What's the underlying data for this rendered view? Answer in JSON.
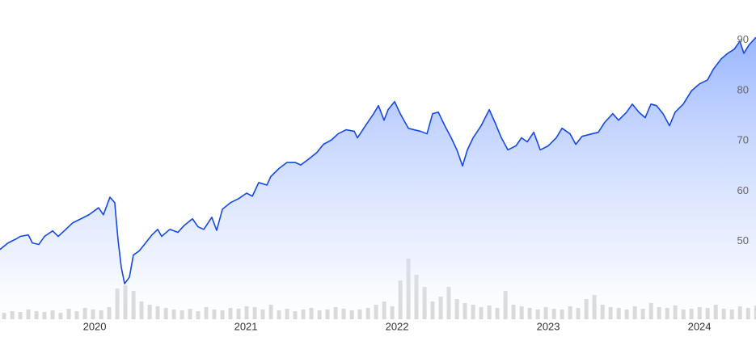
{
  "chart_data": {
    "type": "line",
    "xlim": [
      2019.374,
      2024.374
    ],
    "xticks": [
      2020,
      2021,
      2022,
      2023,
      2024
    ],
    "ylim": [
      31,
      98
    ],
    "yticks": [
      50,
      60,
      70,
      80,
      90
    ],
    "y2lim": [
      0,
      100
    ],
    "series": [
      {
        "type": "line",
        "color": "#1548e6",
        "x": [
          2019.374,
          2019.427,
          2019.481,
          2019.508,
          2019.561,
          2019.588,
          2019.631,
          2019.668,
          2019.722,
          2019.759,
          2019.802,
          2019.855,
          2019.909,
          2019.962,
          2020.026,
          2020.058,
          2020.101,
          2020.133,
          2020.155,
          2020.176,
          2020.198,
          2020.23,
          2020.256,
          2020.294,
          2020.337,
          2020.379,
          2020.417,
          2020.443,
          2020.497,
          2020.55,
          2020.593,
          2020.647,
          2020.684,
          2020.722,
          2020.775,
          2020.807,
          2020.845,
          2020.898,
          2020.952,
          2021.005,
          2021.043,
          2021.085,
          2021.139,
          2021.165,
          2021.219,
          2021.272,
          2021.326,
          2021.363,
          2021.417,
          2021.47,
          2021.513,
          2021.567,
          2021.61,
          2021.663,
          2021.717,
          2021.738,
          2021.791,
          2021.845,
          2021.877,
          2021.914,
          2021.941,
          2021.984,
          2022.021,
          2022.075,
          2022.112,
          2022.155,
          2022.198,
          2022.235,
          2022.273,
          2022.316,
          2022.358,
          2022.396,
          2022.433,
          2022.465,
          2022.503,
          2022.556,
          2022.61,
          2022.647,
          2022.69,
          2022.733,
          2022.786,
          2022.823,
          2022.861,
          2022.904,
          2022.947,
          2023.0,
          2023.053,
          2023.091,
          2023.144,
          2023.182,
          2023.224,
          2023.289,
          2023.331,
          2023.374,
          2023.427,
          2023.465,
          2023.518,
          2023.556,
          2023.599,
          2023.641,
          2023.679,
          2023.716,
          2023.759,
          2023.802,
          2023.839,
          2023.893,
          2023.946,
          2023.999,
          2024.053,
          2024.091,
          2024.144,
          2024.187,
          2024.23,
          2024.267,
          2024.294,
          2024.326,
          2024.374
        ],
        "values": [
          48.4,
          49.7,
          50.5,
          51,
          51.3,
          49.7,
          49.4,
          51,
          52.1,
          51,
          52.2,
          53.7,
          54.5,
          55.3,
          56.7,
          55.3,
          58.8,
          57.7,
          50.2,
          44.9,
          41.6,
          42.9,
          47.3,
          48.1,
          49.7,
          51.3,
          52.4,
          51,
          52.4,
          51.8,
          53.2,
          54.5,
          52.9,
          52.4,
          54.8,
          52.2,
          56.4,
          57.7,
          58.5,
          59.6,
          59,
          61.7,
          61.2,
          62.9,
          64.5,
          65.7,
          65.7,
          65.2,
          66.4,
          67.7,
          69.3,
          70.2,
          71.4,
          72.2,
          71.9,
          70.6,
          73,
          75.4,
          77,
          74.1,
          76.2,
          77.8,
          75.4,
          72.5,
          72.2,
          71.9,
          71.4,
          75.4,
          75.7,
          73,
          70.6,
          68.2,
          65,
          68.2,
          70.6,
          73,
          76.2,
          73.7,
          70.6,
          68.2,
          69,
          70.6,
          69.8,
          71.7,
          68.2,
          69,
          70.6,
          72.5,
          71.4,
          69.3,
          70.9,
          71.4,
          71.7,
          73.7,
          75.4,
          74.1,
          75.7,
          77.3,
          75.7,
          74.6,
          77.3,
          77,
          75.4,
          73,
          75.7,
          77.3,
          79.9,
          81.3,
          82.1,
          84.2,
          86.3,
          87.4,
          88.2,
          89.8,
          87.4,
          89,
          90.6
        ]
      },
      {
        "type": "bar",
        "axis": "y2",
        "color": "#d4d4d4",
        "x": [
          2019.401,
          2019.455,
          2019.508,
          2019.561,
          2019.615,
          2019.668,
          2019.722,
          2019.775,
          2019.829,
          2019.882,
          2019.936,
          2019.989,
          2020.043,
          2020.096,
          2020.15,
          2020.203,
          2020.257,
          2020.31,
          2020.364,
          2020.417,
          2020.471,
          2020.524,
          2020.578,
          2020.631,
          2020.684,
          2020.738,
          2020.791,
          2020.845,
          2020.898,
          2020.952,
          2021.005,
          2021.059,
          2021.112,
          2021.166,
          2021.219,
          2021.273,
          2021.326,
          2021.38,
          2021.433,
          2021.487,
          2021.54,
          2021.594,
          2021.647,
          2021.701,
          2021.754,
          2021.808,
          2021.861,
          2021.915,
          2021.968,
          2022.022,
          2022.075,
          2022.128,
          2022.182,
          2022.235,
          2022.289,
          2022.342,
          2022.396,
          2022.449,
          2022.503,
          2022.556,
          2022.61,
          2022.663,
          2022.717,
          2022.77,
          2022.824,
          2022.877,
          2022.931,
          2022.984,
          2023.038,
          2023.091,
          2023.145,
          2023.198,
          2023.252,
          2023.305,
          2023.359,
          2023.412,
          2023.466,
          2023.519,
          2023.573,
          2023.626,
          2023.68,
          2023.733,
          2023.787,
          2023.84,
          2023.894,
          2023.947,
          2024.001,
          2024.054,
          2024.108,
          2024.161,
          2024.215,
          2024.268,
          2024.322,
          2024.375
        ],
        "values": [
          8,
          10,
          9,
          12,
          10,
          9,
          11,
          8,
          13,
          10,
          14,
          12,
          11,
          15,
          38,
          42,
          35,
          22,
          18,
          16,
          14,
          12,
          11,
          13,
          10,
          15,
          12,
          11,
          14,
          13,
          16,
          15,
          12,
          18,
          11,
          13,
          10,
          12,
          14,
          11,
          12,
          15,
          13,
          11,
          12,
          14,
          18,
          22,
          16,
          48,
          75,
          55,
          40,
          22,
          28,
          40,
          25,
          20,
          18,
          15,
          17,
          14,
          35,
          18,
          16,
          14,
          12,
          15,
          13,
          12,
          16,
          14,
          25,
          30,
          18,
          15,
          14,
          12,
          16,
          13,
          20,
          15,
          14,
          17,
          12,
          13,
          15,
          14,
          18,
          13,
          12,
          16,
          14,
          17
        ]
      }
    ]
  }
}
